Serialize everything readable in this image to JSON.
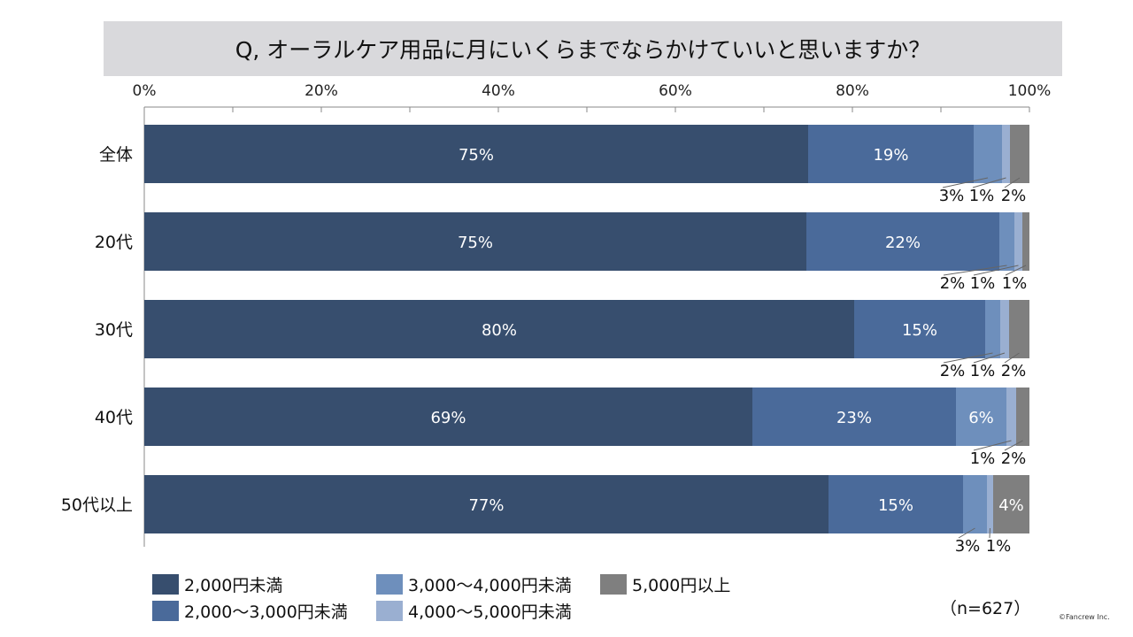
{
  "chart_data": {
    "type": "bar",
    "orientation": "horizontal-stacked-100",
    "title": "Q, オーラルケア用品に月にいくらまでならかけていいと思いますか？",
    "categories": [
      "全体",
      "20代",
      "30代",
      "40代",
      "50代以上"
    ],
    "xticks": [
      "0%",
      "20%",
      "40%",
      "60%",
      "80%",
      "100%"
    ],
    "xlim": [
      0,
      100
    ],
    "series": [
      {
        "name": "2,000円未満",
        "color": "#374e6e",
        "values": [
          75.0,
          74.8,
          80.2,
          68.7,
          77.3
        ],
        "labels": [
          "75%",
          "75%",
          "80%",
          "69%",
          "77%"
        ]
      },
      {
        "name": "2,000～3,000円未満",
        "color": "#4a6a9a",
        "values": [
          18.7,
          21.8,
          14.8,
          23.0,
          15.2
        ],
        "labels": [
          "19%",
          "22%",
          "15%",
          "23%",
          "15%"
        ]
      },
      {
        "name": "3,000～4,000円未満",
        "color": "#6e8fbc",
        "values": [
          3.2,
          1.7,
          1.7,
          5.7,
          2.7
        ],
        "labels": [
          "3%",
          "2%",
          "2%",
          "6%",
          "3%"
        ]
      },
      {
        "name": "4,000～5,000円未満",
        "color": "#9aafd1",
        "values": [
          0.9,
          0.9,
          1.0,
          1.1,
          0.7
        ],
        "labels": [
          "1%",
          "1%",
          "1%",
          "1%",
          "1%"
        ]
      },
      {
        "name": "5,000円以上",
        "color": "#7f7f7f",
        "values": [
          2.2,
          0.8,
          2.3,
          1.5,
          4.1
        ],
        "labels": [
          "2%",
          "1%",
          "2%",
          "2%",
          "4%"
        ]
      }
    ],
    "legend_position": "bottom-left",
    "grid": false
  },
  "sample_size": "（n=627）",
  "credit": "©Fancrew Inc."
}
